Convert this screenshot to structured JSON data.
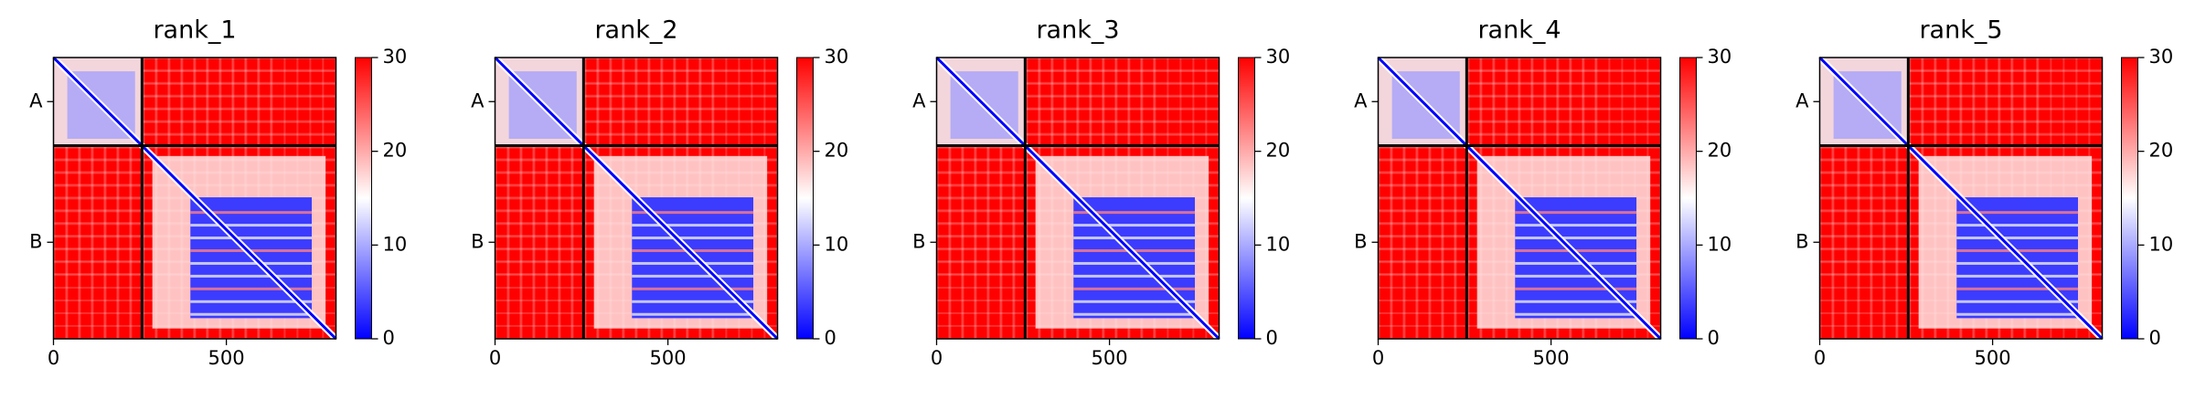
{
  "chart_data": [
    {
      "type": "heatmap",
      "title": "rank_1",
      "xlim": [
        0,
        817
      ],
      "xticks": [
        0,
        500
      ],
      "ycategories": [
        "A",
        "B"
      ],
      "chain_breaks": [
        256
      ],
      "clim": [
        0,
        30
      ],
      "cticks": [
        0,
        10,
        20,
        30
      ],
      "colormap": [
        "#0000ff",
        "#ffffff",
        "#ff0000"
      ]
    },
    {
      "type": "heatmap",
      "title": "rank_2",
      "xlim": [
        0,
        817
      ],
      "xticks": [
        0,
        500
      ],
      "ycategories": [
        "A",
        "B"
      ],
      "chain_breaks": [
        256
      ],
      "clim": [
        0,
        30
      ],
      "cticks": [
        0,
        10,
        20,
        30
      ],
      "colormap": [
        "#0000ff",
        "#ffffff",
        "#ff0000"
      ]
    },
    {
      "type": "heatmap",
      "title": "rank_3",
      "xlim": [
        0,
        817
      ],
      "xticks": [
        0,
        500
      ],
      "ycategories": [
        "A",
        "B"
      ],
      "chain_breaks": [
        256
      ],
      "clim": [
        0,
        30
      ],
      "cticks": [
        0,
        10,
        20,
        30
      ],
      "colormap": [
        "#0000ff",
        "#ffffff",
        "#ff0000"
      ]
    },
    {
      "type": "heatmap",
      "title": "rank_4",
      "xlim": [
        0,
        817
      ],
      "xticks": [
        0,
        500
      ],
      "ycategories": [
        "A",
        "B"
      ],
      "chain_breaks": [
        256
      ],
      "clim": [
        0,
        30
      ],
      "cticks": [
        0,
        10,
        20,
        30
      ],
      "colormap": [
        "#0000ff",
        "#ffffff",
        "#ff0000"
      ]
    },
    {
      "type": "heatmap",
      "title": "rank_5",
      "xlim": [
        0,
        817
      ],
      "xticks": [
        0,
        500
      ],
      "ycategories": [
        "A",
        "B"
      ],
      "chain_breaks": [
        256
      ],
      "clim": [
        0,
        30
      ],
      "cticks": [
        0,
        10,
        20,
        30
      ],
      "colormap": [
        "#0000ff",
        "#ffffff",
        "#ff0000"
      ]
    }
  ]
}
